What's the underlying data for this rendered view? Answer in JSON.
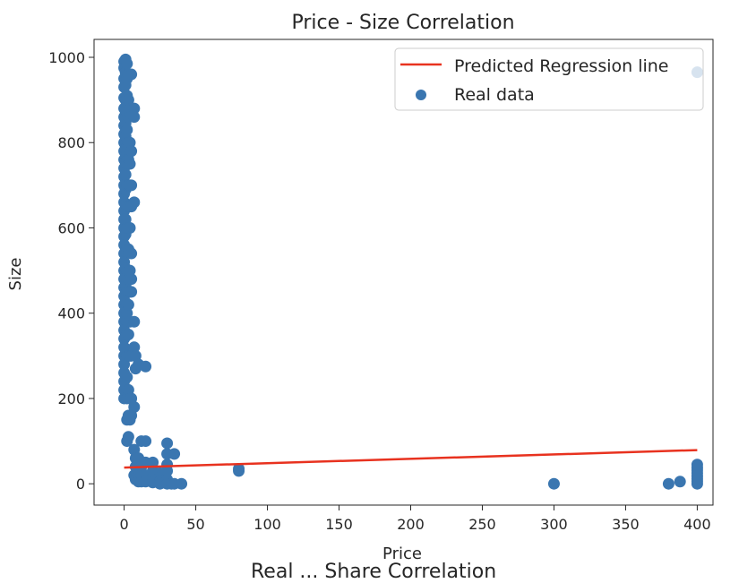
{
  "chart_data": {
    "type": "scatter",
    "title": "Price - Size Correlation",
    "xlabel": "Price",
    "ylabel": "Size",
    "xlim": [
      -21,
      411
    ],
    "ylim": [
      -50,
      1042
    ],
    "xticks": [
      0,
      50,
      100,
      150,
      200,
      250,
      300,
      350,
      400
    ],
    "yticks": [
      0,
      200,
      400,
      600,
      800,
      1000
    ],
    "grid": false,
    "legend": {
      "placement": "top-right"
    },
    "series": [
      {
        "name": "Predicted Regression line",
        "kind": "line",
        "color": "#e8321f",
        "x": [
          0,
          400
        ],
        "y": [
          38,
          79
        ]
      },
      {
        "name": "Real data",
        "kind": "scatter",
        "color": "#3a76b0",
        "x": [
          0,
          0,
          0,
          0,
          0,
          0,
          0,
          0,
          0,
          0,
          0,
          0,
          0,
          0,
          0,
          0,
          0,
          0,
          0,
          0,
          0,
          0,
          0,
          0,
          0,
          0,
          0,
          0,
          0,
          0,
          0,
          0,
          0,
          0,
          0,
          0,
          0,
          0,
          0,
          0,
          1,
          1,
          1,
          1,
          1,
          1,
          1,
          1,
          1,
          1,
          1,
          1,
          1,
          1,
          1,
          1,
          1,
          1,
          1,
          1,
          2,
          2,
          2,
          2,
          2,
          2,
          2,
          2,
          2,
          2,
          2,
          2,
          2,
          2,
          2,
          2,
          2,
          2,
          2,
          2,
          3,
          3,
          3,
          3,
          3,
          3,
          3,
          3,
          3,
          3,
          3,
          3,
          3,
          3,
          3,
          3,
          4,
          4,
          4,
          4,
          4,
          4,
          4,
          4,
          4,
          4,
          4,
          4,
          5,
          5,
          5,
          5,
          5,
          5,
          5,
          5,
          5,
          5,
          5,
          7,
          7,
          7,
          7,
          7,
          7,
          7,
          7,
          8,
          8,
          8,
          8,
          8,
          10,
          10,
          10,
          10,
          10,
          10,
          12,
          12,
          12,
          12,
          12,
          15,
          15,
          15,
          15,
          15,
          20,
          20,
          20,
          20,
          25,
          25,
          25,
          25,
          30,
          30,
          30,
          30,
          30,
          30,
          33,
          35,
          35,
          40,
          80,
          80,
          300,
          380,
          388,
          400,
          400,
          400,
          400,
          400,
          400,
          400,
          400,
          400
        ],
        "y": [
          990,
          975,
          950,
          930,
          905,
          880,
          860,
          840,
          820,
          800,
          780,
          760,
          740,
          720,
          700,
          680,
          660,
          640,
          620,
          600,
          580,
          560,
          540,
          520,
          500,
          480,
          460,
          440,
          420,
          400,
          380,
          360,
          340,
          320,
          300,
          280,
          260,
          240,
          220,
          200,
          995,
          965,
          935,
          900,
          875,
          845,
          815,
          785,
          755,
          725,
          690,
          655,
          620,
          585,
          545,
          505,
          465,
          425,
          385,
          345,
          985,
          950,
          910,
          870,
          830,
          790,
          750,
          700,
          650,
          600,
          550,
          500,
          450,
          400,
          350,
          300,
          250,
          200,
          150,
          100,
          960,
          900,
          860,
          800,
          760,
          700,
          650,
          600,
          550,
          480,
          420,
          350,
          300,
          220,
          160,
          110,
          870,
          800,
          750,
          700,
          650,
          600,
          500,
          450,
          380,
          300,
          200,
          150,
          960,
          880,
          780,
          700,
          650,
          540,
          480,
          450,
          300,
          200,
          160,
          880,
          860,
          660,
          380,
          320,
          180,
          80,
          20,
          300,
          270,
          60,
          40,
          10,
          280,
          60,
          40,
          30,
          20,
          5,
          100,
          50,
          40,
          20,
          5,
          275,
          100,
          50,
          20,
          5,
          50,
          30,
          15,
          3,
          25,
          15,
          5,
          0,
          95,
          70,
          45,
          30,
          10,
          0,
          0,
          70,
          0,
          0,
          35,
          30,
          0,
          0,
          5,
          965,
          45,
          38,
          32,
          25,
          18,
          12,
          6,
          0
        ]
      }
    ]
  }
}
